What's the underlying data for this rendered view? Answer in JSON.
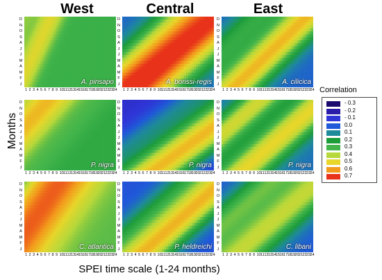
{
  "columns": [
    "West",
    "Central",
    "East"
  ],
  "ylabel": "Months",
  "xlabel": "SPEI time scale (1-24 months)",
  "months": [
    "D",
    "N",
    "O",
    "S",
    "A",
    "J",
    "J",
    "M",
    "A",
    "M",
    "F",
    "J"
  ],
  "scales": [
    "1",
    "2",
    "3",
    "4",
    "5",
    "6",
    "7",
    "8",
    "9",
    "10",
    "11",
    "12",
    "13",
    "14",
    "15",
    "16",
    "17",
    "18",
    "19",
    "20",
    "21",
    "22",
    "23",
    "24"
  ],
  "legend": {
    "title": "Correlation",
    "entries": [
      {
        "label": "- 0.3",
        "color": "#1a0a6e"
      },
      {
        "label": "- 0.2",
        "color": "#2a1ca8"
      },
      {
        "label": "- 0.1",
        "color": "#2f35d6"
      },
      {
        "label": "0.0",
        "color": "#1f5ad8"
      },
      {
        "label": "0.1",
        "color": "#1e8a9a"
      },
      {
        "label": "0.2",
        "color": "#1d9c3a"
      },
      {
        "label": "0.3",
        "color": "#43b54b"
      },
      {
        "label": "0.4",
        "color": "#b7d83a"
      },
      {
        "label": "0.5",
        "color": "#e8d62a"
      },
      {
        "label": "0.6",
        "color": "#f39a1c"
      },
      {
        "label": "0.7",
        "color": "#e8321a"
      }
    ]
  },
  "chart_data": {
    "type": "heatmap",
    "title": "",
    "xlabel": "SPEI time scale (1-24 months)",
    "ylabel": "Months",
    "x_range": [
      1,
      24
    ],
    "y_categories": [
      "J",
      "F",
      "M",
      "A",
      "M",
      "J",
      "J",
      "A",
      "S",
      "O",
      "N",
      "D"
    ],
    "z_range": [
      -0.3,
      0.7
    ],
    "panels": [
      {
        "species": "A. pinsapo",
        "region": "West",
        "base": 0.28,
        "ridge": {
          "slope": 1.35,
          "offset": 1.5,
          "peak": 0.48,
          "width": 3.0
        },
        "secondary": {
          "slope": 1.35,
          "offset": 10,
          "peak": 0.38,
          "width": 2.5
        }
      },
      {
        "species": "A. borissi-regis",
        "region": "Central",
        "base": 0.02,
        "ridge": {
          "slope": 0.55,
          "offset": -2,
          "peak": 0.68,
          "width": 4.0
        },
        "secondary": {
          "slope": 0.6,
          "offset": 3,
          "peak": 0.3,
          "width": 3.0
        }
      },
      {
        "species": "A. cilicica",
        "region": "East",
        "base": 0.02,
        "ridge": {
          "slope": 0.6,
          "offset": -1.5,
          "peak": 0.55,
          "width": 2.8
        },
        "secondary": {
          "slope": 0.6,
          "offset": 6,
          "peak": 0.3,
          "width": 2.5
        }
      },
      {
        "species": "P. nigra",
        "region": "West",
        "base": 0.25,
        "ridge": {
          "slope": 0.7,
          "offset": 7,
          "peak": 0.55,
          "width": 3.5
        },
        "secondary": {
          "slope": 0.7,
          "offset": -2,
          "peak": 0.3,
          "width": 2.0
        }
      },
      {
        "species": "P. nigra",
        "region": "Central",
        "base": -0.12,
        "ridge": {
          "slope": 0.45,
          "offset": -3,
          "peak": 0.55,
          "width": 3.0
        },
        "secondary": {
          "slope": 0.45,
          "offset": 4,
          "peak": 0.1,
          "width": 2.0
        }
      },
      {
        "species": "P. nigra",
        "region": "East",
        "base": 0.05,
        "ridge": {
          "slope": 0.55,
          "offset": -2.5,
          "peak": 0.5,
          "width": 2.5
        },
        "secondary": {
          "slope": 0.55,
          "offset": 6,
          "peak": 0.55,
          "width": 2.2
        }
      },
      {
        "species": "C. atlantica",
        "region": "West",
        "base": 0.32,
        "ridge": {
          "slope": 0.9,
          "offset": 3,
          "peak": 0.66,
          "width": 6.0
        },
        "secondary": {
          "slope": 0.9,
          "offset": 12,
          "peak": 0.15,
          "width": 2.0
        }
      },
      {
        "species": "P. heldreichi",
        "region": "Central",
        "base": -0.02,
        "ridge": {
          "slope": 0.55,
          "offset": -2.5,
          "peak": 0.55,
          "width": 2.8
        },
        "secondary": {
          "slope": 0.55,
          "offset": 3,
          "peak": 0.2,
          "width": 2.2
        }
      },
      {
        "species": "C. libani",
        "region": "East",
        "base": 0.0,
        "ridge": {
          "slope": 0.55,
          "offset": -2,
          "peak": 0.42,
          "width": 3.0
        },
        "secondary": {
          "slope": 0.55,
          "offset": 5,
          "peak": 0.38,
          "width": 2.5
        }
      }
    ]
  }
}
